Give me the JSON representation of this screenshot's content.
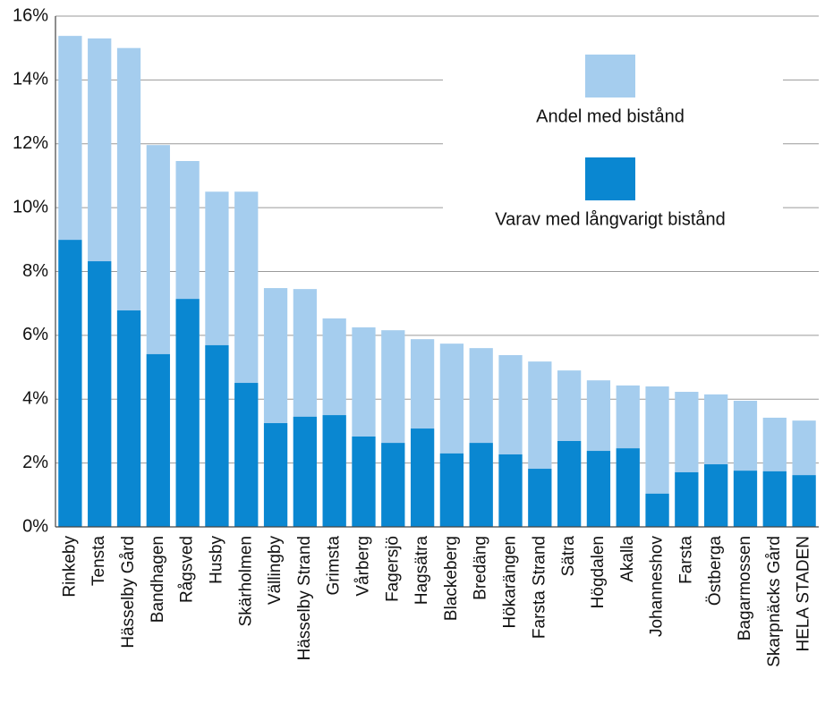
{
  "chart_data": {
    "type": "bar",
    "categories": [
      "Rinkeby",
      "Tensta",
      "Hässelby Gård",
      "Bandhagen",
      "Rågsved",
      "Husby",
      "Skärholmen",
      "Vällingby",
      "Hässelby Strand",
      "Grimsta",
      "Vårberg",
      "Fagersjö",
      "Hagsätra",
      "Blackeberg",
      "Bredäng",
      "Hökarängen",
      "Farsta Strand",
      "Sätra",
      "Högdalen",
      "Akalla",
      "Johanneshov",
      "Farsta",
      "Östberga",
      "Bagarmossen",
      "Skarpnäcks Gård",
      "HELA STADEN"
    ],
    "series": [
      {
        "name": "Andel med bistånd",
        "color": "#a5cdee",
        "values": [
          15.38,
          15.3,
          15.0,
          11.96,
          11.46,
          10.5,
          10.5,
          7.48,
          7.45,
          6.53,
          6.25,
          6.16,
          5.88,
          5.74,
          5.6,
          5.38,
          5.18,
          4.9,
          4.59,
          4.43,
          4.4,
          4.23,
          4.15,
          3.95,
          3.42,
          3.33
        ]
      },
      {
        "name": "Varav med långvarigt bistånd",
        "color": "#0a87d1",
        "values": [
          8.99,
          8.32,
          6.78,
          5.41,
          7.14,
          5.69,
          4.51,
          3.25,
          3.45,
          3.5,
          2.83,
          2.63,
          3.08,
          2.3,
          2.63,
          2.27,
          1.82,
          2.69,
          2.38,
          2.46,
          1.04,
          1.71,
          1.96,
          1.76,
          1.74,
          1.62
        ]
      }
    ],
    "ylim": [
      0,
      16
    ],
    "yticks": [
      {
        "value": 0,
        "label": "0%"
      },
      {
        "value": 2,
        "label": "2%"
      },
      {
        "value": 4,
        "label": "4%"
      },
      {
        "value": 6,
        "label": "6%"
      },
      {
        "value": 8,
        "label": "8%"
      },
      {
        "value": 10,
        "label": "10%"
      },
      {
        "value": 12,
        "label": "12%"
      },
      {
        "value": 14,
        "label": "14%"
      },
      {
        "value": 16,
        "label": "16%"
      }
    ],
    "grid": true,
    "legend": "upper right",
    "overlap": true
  }
}
